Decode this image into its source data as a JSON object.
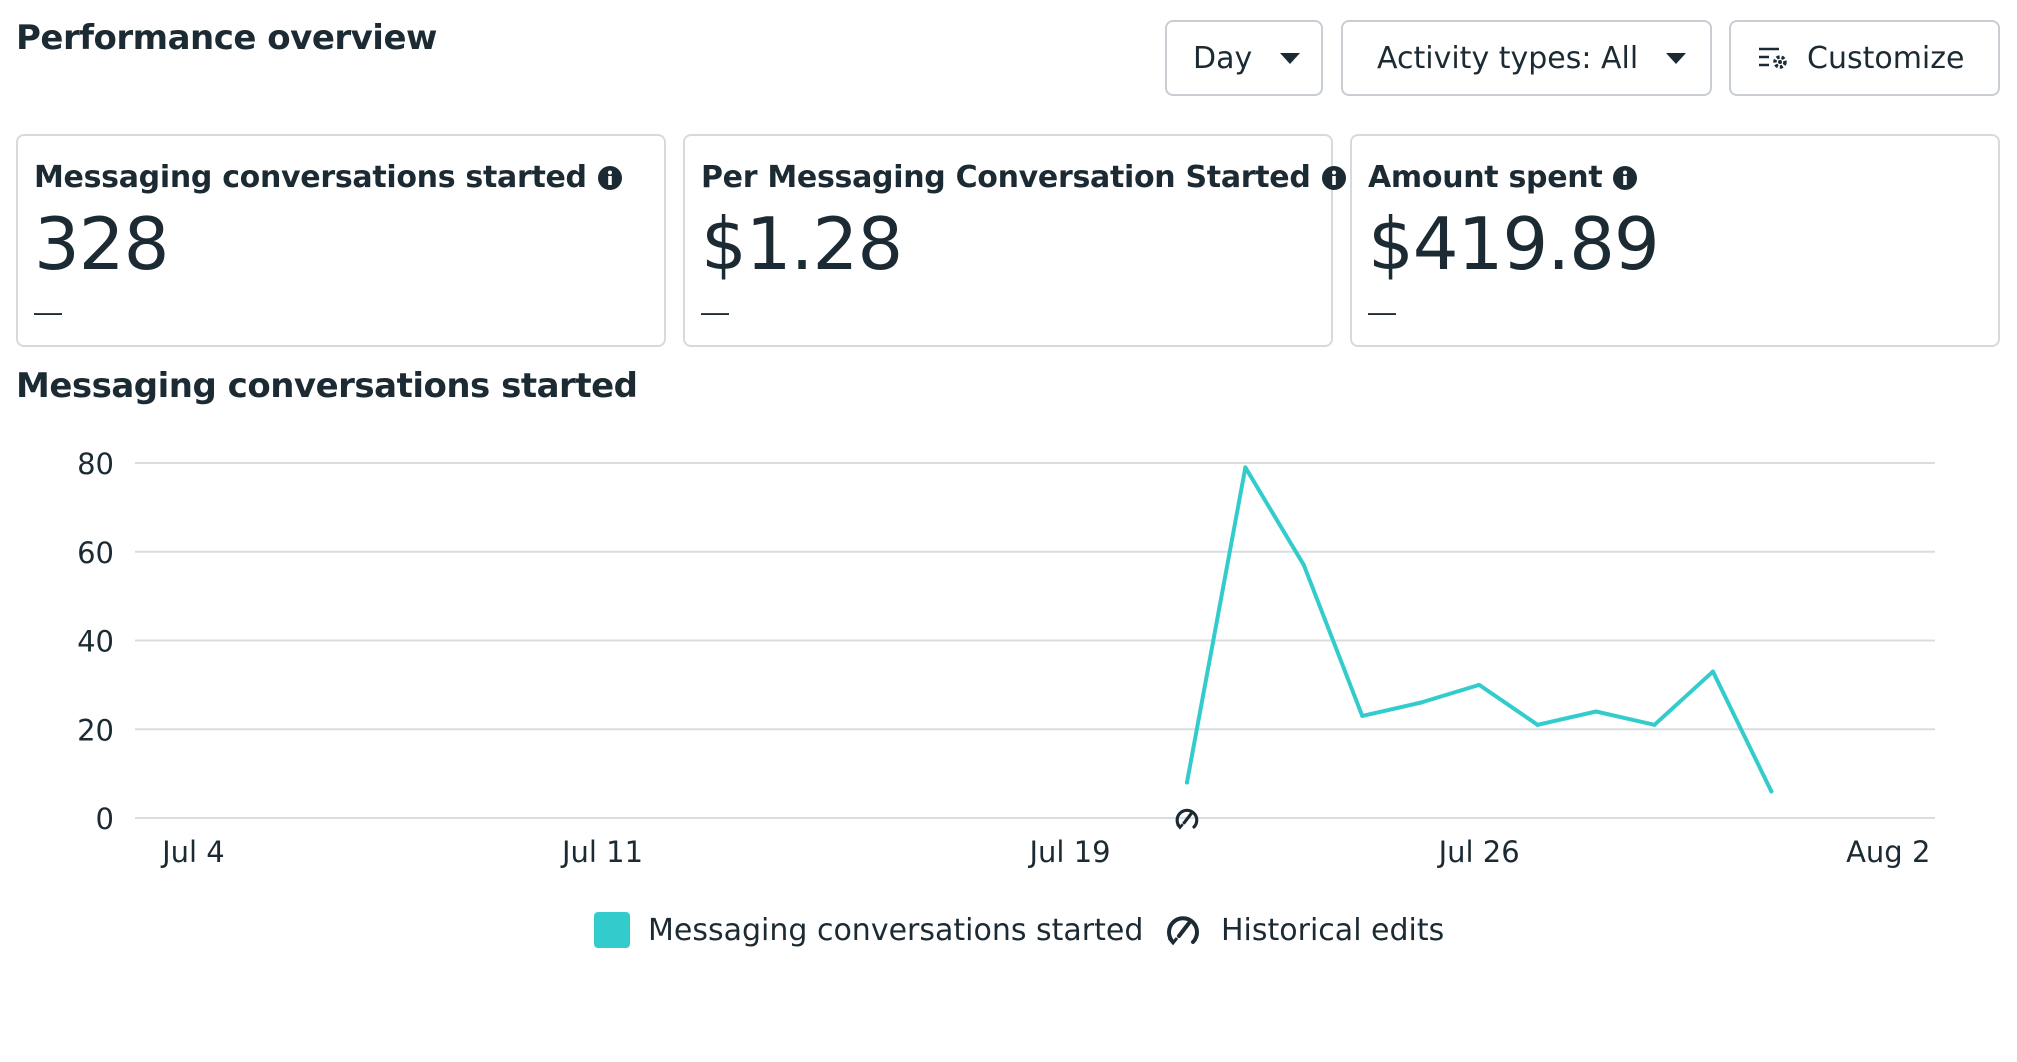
{
  "header": {
    "title": "Performance overview",
    "day_label": "Day",
    "activity_label": "Activity types: All",
    "customize_label": "Customize"
  },
  "metrics": [
    {
      "label": "Messaging conversations started",
      "value": "328",
      "change": "—"
    },
    {
      "label": "Per Messaging Conversation Started",
      "value": "$1.28",
      "change": "—"
    },
    {
      "label": "Amount spent",
      "value": "$419.89",
      "change": "—"
    }
  ],
  "chart_title": "Messaging conversations started",
  "legend": {
    "series_label": "Messaging conversations started",
    "edits_label": "Historical edits"
  },
  "colors": {
    "series": "#33cccc",
    "grid": "#d9dde2",
    "text": "#1c2b33"
  },
  "icons": [
    "caret-down-icon",
    "customize-icon",
    "info-icon",
    "historical-edits-icon"
  ],
  "chart_data": {
    "type": "line",
    "x_tick_labels": [
      "Jul 4",
      "Jul 11",
      "Jul 19",
      "Jul 26",
      "Aug 2"
    ],
    "x_tick_days": [
      4,
      11,
      19,
      26,
      33
    ],
    "x_range_days": [
      3,
      33.8
    ],
    "y_ticks": [
      0,
      20,
      40,
      60,
      80
    ],
    "ylim": [
      0,
      80
    ],
    "grid": true,
    "legend_placement": "bottom-center",
    "series": [
      {
        "name": "Messaging conversations started",
        "x": [
          "Jul 21",
          "Jul 22",
          "Jul 23",
          "Jul 24",
          "Jul 25",
          "Jul 26",
          "Jul 27",
          "Jul 28",
          "Jul 29",
          "Jul 30",
          "Jul 31"
        ],
        "x_days": [
          21,
          22,
          23,
          24,
          25,
          26,
          27,
          28,
          29,
          30,
          31
        ],
        "values": [
          8,
          79,
          57,
          23,
          26,
          30,
          21,
          24,
          21,
          33,
          6
        ]
      }
    ],
    "annotations": [
      {
        "type": "historical-edit",
        "x": "Jul 21",
        "x_day": 21
      }
    ]
  }
}
